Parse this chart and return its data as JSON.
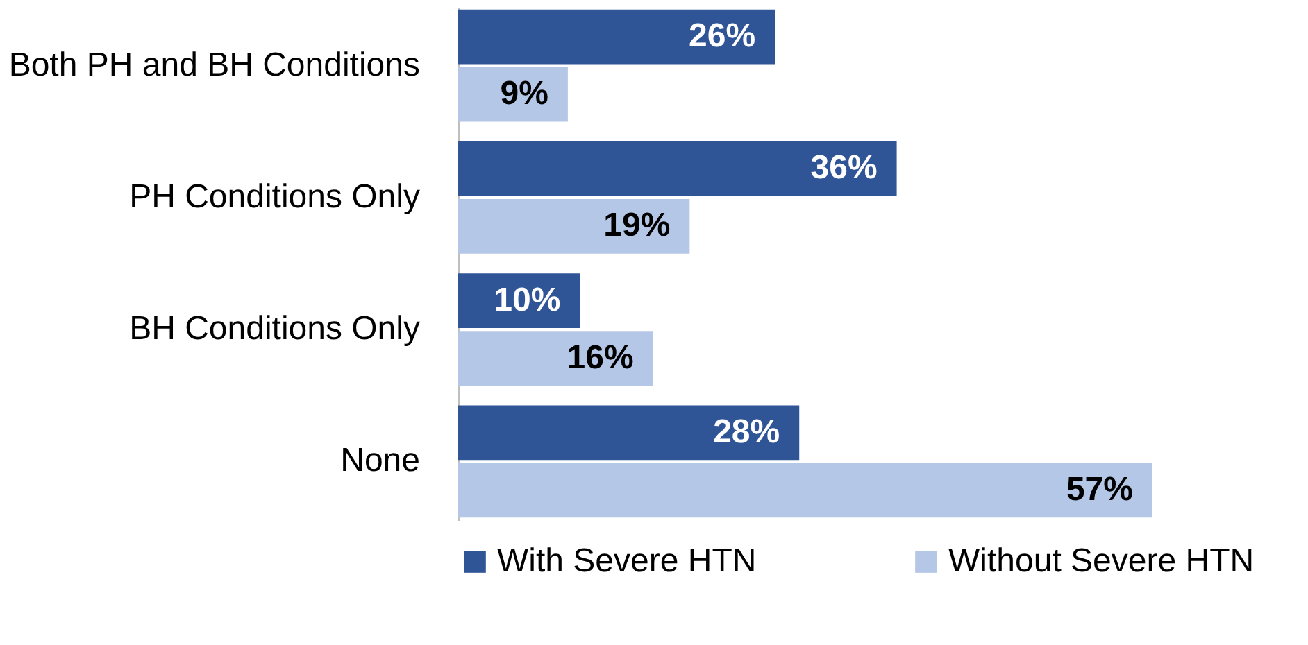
{
  "chart_data": {
    "type": "bar",
    "orientation": "horizontal",
    "legend": "bottom",
    "categories": [
      "Both PH and BH Conditions",
      "PH Conditions Only",
      "BH Conditions Only",
      "None"
    ],
    "series": [
      {
        "name": "With Severe HTN",
        "color": "#2f5597",
        "values": [
          26,
          36,
          10,
          28
        ],
        "value_labels": [
          "26%",
          "36%",
          "10%",
          "28%"
        ]
      },
      {
        "name": "Without Severe HTN",
        "color": "#b4c7e7",
        "values": [
          9,
          19,
          16,
          57
        ],
        "value_labels": [
          "9%",
          "19%",
          "16%",
          "57%"
        ]
      }
    ]
  }
}
